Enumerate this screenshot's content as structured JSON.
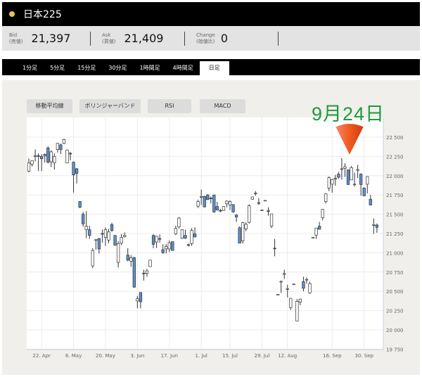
{
  "header": {
    "title": "日本225",
    "status_color": "#e8c05a"
  },
  "quote": {
    "bid": {
      "label": "Bid",
      "sub": "(売値)",
      "value": "21,397"
    },
    "ask": {
      "label": "Ask",
      "sub": "(買値)",
      "value": "21,409"
    },
    "change": {
      "label": "Change",
      "sub": "(始値比)",
      "value": "0"
    }
  },
  "tabs": [
    "1分足",
    "5分足",
    "15分足",
    "30分足",
    "1時間足",
    "4時間足",
    "日足"
  ],
  "active_tab": "日足",
  "indicators": [
    "移動平均線",
    "ボリンジャーバンド",
    "RSI",
    "MACD"
  ],
  "annotation": {
    "text": "9月24日",
    "color": "#1c9a3c",
    "marker_color": "#f05a1e"
  },
  "chart_data": {
    "type": "candlestick",
    "ylim": [
      19750,
      22600
    ],
    "y_ticks": [
      "22 500",
      "22 250",
      "22 000",
      "21 750",
      "21 500",
      "21 250",
      "21 000",
      "20 750",
      "20 500",
      "20 250",
      "20 000",
      "19 750"
    ],
    "y_tick_values": [
      22500,
      22250,
      22000,
      21750,
      21500,
      21250,
      21000,
      20750,
      20500,
      20250,
      20000,
      19750
    ],
    "x_ticks": [
      {
        "label": "22. Apr",
        "at": 4
      },
      {
        "label": "6. May",
        "at": 14
      },
      {
        "label": "20. May",
        "at": 24
      },
      {
        "label": "3. Jun",
        "at": 34
      },
      {
        "label": "17. Jun",
        "at": 44
      },
      {
        "label": "1. Jul",
        "at": 54
      },
      {
        "label": "15. Jul",
        "at": 63
      },
      {
        "label": "29. Jul",
        "at": 73
      },
      {
        "label": "12. Aug",
        "at": 81
      },
      {
        "label": "16. Sep",
        "at": 95
      },
      {
        "label": "30. Sep",
        "at": 105
      }
    ],
    "grid": true,
    "up_color": "#ffffff",
    "down_color": "#5b8fcf",
    "annotated_candle": 100,
    "candles_ohlc": [
      [
        22060,
        22225,
        22045,
        22165
      ],
      [
        22150,
        22195,
        22120,
        22195
      ],
      [
        22255,
        22340,
        22185,
        22260
      ],
      [
        22260,
        22290,
        22060,
        22255
      ],
      [
        22250,
        22280,
        22060,
        22220
      ],
      [
        22275,
        22290,
        22170,
        22260
      ],
      [
        22360,
        22380,
        22160,
        22175
      ],
      [
        22180,
        22330,
        22110,
        22310
      ],
      [
        22165,
        22290,
        22080,
        22250
      ],
      [
        22340,
        22425,
        22300,
        22420
      ],
      [
        22400,
        22415,
        22280,
        22340
      ],
      [
        22420,
        22480,
        22410,
        22470
      ],
      [
        22165,
        22340,
        22165,
        22333
      ],
      [
        22290,
        22310,
        22200,
        22285
      ],
      [
        22175,
        22185,
        21780,
        22010
      ],
      [
        22090,
        22100,
        21900,
        22030
      ],
      [
        21665,
        21670,
        21580,
        21590
      ],
      [
        21500,
        21530,
        21340,
        21375
      ],
      [
        21300,
        21540,
        21190,
        21345
      ],
      [
        21300,
        21350,
        21180,
        21225
      ],
      [
        20830,
        21060,
        20800,
        21030
      ],
      [
        21165,
        21175,
        21040,
        21170
      ],
      [
        21185,
        21190,
        20990,
        21050
      ],
      [
        21250,
        21300,
        21130,
        21245
      ],
      [
        21200,
        21330,
        21090,
        21300
      ],
      [
        21165,
        21310,
        21125,
        21270
      ],
      [
        21365,
        21390,
        21270,
        21290
      ],
      [
        21225,
        21230,
        21090,
        21100
      ],
      [
        20875,
        21150,
        20810,
        21120
      ],
      [
        21125,
        21245,
        21100,
        21200
      ],
      [
        21210,
        21265,
        21200,
        21225
      ],
      [
        20970,
        21060,
        20890,
        20905
      ],
      [
        20890,
        20970,
        20820,
        20935
      ],
      [
        20935,
        20950,
        20545,
        20555
      ],
      [
        20375,
        20440,
        20280,
        20405
      ],
      [
        20485,
        20490,
        20280,
        20365
      ],
      [
        20735,
        20780,
        20640,
        20730
      ],
      [
        20735,
        20790,
        20690,
        20765
      ],
      [
        20820,
        20905,
        20820,
        20905
      ],
      [
        21225,
        21240,
        21060,
        21110
      ],
      [
        21140,
        21220,
        21060,
        21215
      ],
      [
        21185,
        21240,
        21130,
        21180
      ],
      [
        21040,
        21110,
        20990,
        21000
      ],
      [
        21050,
        21115,
        20990,
        21080
      ],
      [
        21050,
        21160,
        21010,
        21130
      ],
      [
        21145,
        21145,
        21030,
        21030
      ],
      [
        21245,
        21350,
        21230,
        21315
      ],
      [
        21335,
        21465,
        21315,
        21450
      ],
      [
        21190,
        21300,
        21180,
        21300
      ],
      [
        21225,
        21300,
        21180,
        21190
      ],
      [
        21105,
        21120,
        21080,
        21100
      ],
      [
        21120,
        21320,
        21090,
        21290
      ],
      [
        21245,
        21330,
        21200,
        21205
      ],
      [
        21605,
        21690,
        21580,
        21665
      ],
      [
        21720,
        21820,
        21620,
        21730
      ],
      [
        21730,
        21740,
        21590,
        21595
      ],
      [
        21750,
        21760,
        21685,
        21690
      ],
      [
        21710,
        21730,
        21640,
        21705
      ],
      [
        21750,
        21755,
        21520,
        21530
      ],
      [
        21600,
        21660,
        21550,
        21555
      ],
      [
        21550,
        21570,
        21525,
        21548
      ],
      [
        21550,
        21600,
        21545,
        21600
      ],
      [
        21635,
        21680,
        21590,
        21670
      ],
      [
        21620,
        21680,
        21555,
        21665
      ],
      [
        21625,
        21630,
        21520,
        21530
      ],
      [
        21490,
        21500,
        21400,
        21465
      ],
      [
        21325,
        21340,
        21125,
        21125
      ],
      [
        21155,
        21400,
        21120,
        21390
      ],
      [
        21310,
        21395,
        21280,
        21370
      ],
      [
        21395,
        21630,
        21380,
        21610
      ],
      [
        21695,
        21725,
        21690,
        21725
      ],
      [
        21770,
        21800,
        21740,
        21775
      ],
      [
        21650,
        21710,
        21620,
        21645
      ],
      [
        21555,
        21560,
        21550,
        21555
      ],
      [
        21680,
        21680,
        21680,
        21680
      ],
      [
        21545,
        21590,
        21480,
        21540
      ],
      [
        21345,
        21500,
        21320,
        21505
      ],
      [
        21060,
        21180,
        20955,
        21055
      ],
      [
        20460,
        20460,
        20460,
        20460
      ],
      [
        20620,
        20640,
        20480,
        20630
      ],
      [
        20730,
        20780,
        20660,
        20730
      ],
      [
        20530,
        20585,
        20420,
        20535
      ],
      [
        20290,
        20400,
        20260,
        20410
      ],
      [
        20595,
        20595,
        20595,
        20595
      ],
      [
        20115,
        20400,
        20115,
        20370
      ],
      [
        20360,
        20405,
        20320,
        20400
      ],
      [
        20625,
        20690,
        20500,
        20540
      ],
      [
        20650,
        20680,
        20600,
        20655
      ],
      [
        20480,
        20625,
        20470,
        20600
      ],
      [
        21200,
        21200,
        21200,
        21200
      ],
      [
        21230,
        21325,
        21180,
        21320
      ],
      [
        21345,
        21400,
        21305,
        21305
      ],
      [
        21455,
        21565,
        21420,
        21565
      ],
      [
        21665,
        21770,
        21640,
        21765
      ],
      [
        21840,
        21990,
        21800,
        21975
      ],
      [
        21890,
        21960,
        21780,
        21950
      ],
      [
        21960,
        22010,
        21870,
        21965
      ],
      [
        22020,
        22050,
        21960,
        21980
      ],
      [
        22085,
        22230,
        21950,
        22090
      ],
      [
        22095,
        22160,
        21985,
        22115
      ],
      [
        22075,
        22080,
        21885,
        21885
      ],
      [
        21945,
        22125,
        21945,
        22105
      ],
      [
        21890,
        22040,
        21860,
        21890
      ],
      [
        22070,
        22140,
        21970,
        22080
      ],
      [
        22020,
        22030,
        21740,
        21885
      ],
      [
        21840,
        21850,
        21735,
        21740
      ],
      [
        21890,
        21990,
        21770,
        21990
      ],
      [
        21695,
        21750,
        21615,
        21620
      ],
      [
        21365,
        21445,
        21245,
        21365
      ],
      [
        21360,
        21380,
        21260,
        21330
      ]
    ]
  }
}
